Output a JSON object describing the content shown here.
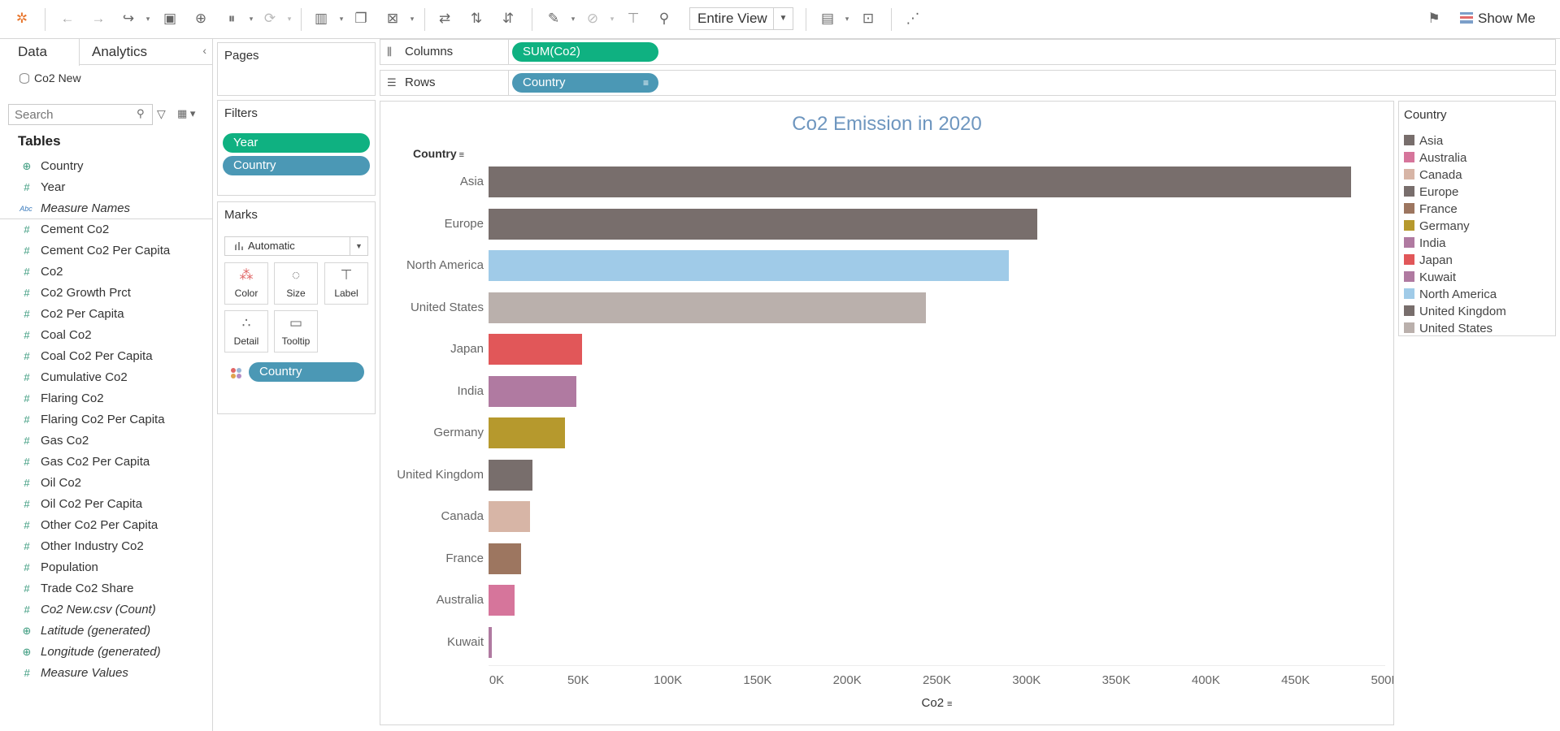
{
  "toolbar": {
    "view_mode": "Entire View",
    "show_me": "Show Me"
  },
  "leftpane": {
    "tabs": [
      "Data",
      "Analytics"
    ],
    "datasource": "Co2 New",
    "search_placeholder": "Search",
    "tables_heading": "Tables",
    "fields": [
      {
        "label": "Country",
        "icon": "globe-icon",
        "italic": false
      },
      {
        "label": "Year",
        "icon": "hash-icon",
        "italic": false
      },
      {
        "label": "Measure Names",
        "icon": "abc-icon",
        "italic": true
      },
      {
        "label": "Cement Co2",
        "icon": "hash-icon",
        "italic": false
      },
      {
        "label": "Cement Co2 Per Capita",
        "icon": "hash-icon",
        "italic": false
      },
      {
        "label": "Co2",
        "icon": "hash-icon",
        "italic": false
      },
      {
        "label": "Co2 Growth Prct",
        "icon": "hash-icon",
        "italic": false
      },
      {
        "label": "Co2 Per Capita",
        "icon": "hash-icon",
        "italic": false
      },
      {
        "label": "Coal Co2",
        "icon": "hash-icon",
        "italic": false
      },
      {
        "label": "Coal Co2 Per Capita",
        "icon": "hash-icon",
        "italic": false
      },
      {
        "label": "Cumulative Co2",
        "icon": "hash-icon",
        "italic": false
      },
      {
        "label": "Flaring Co2",
        "icon": "hash-icon",
        "italic": false
      },
      {
        "label": "Flaring Co2 Per Capita",
        "icon": "hash-icon",
        "italic": false
      },
      {
        "label": "Gas Co2",
        "icon": "hash-icon",
        "italic": false
      },
      {
        "label": "Gas Co2 Per Capita",
        "icon": "hash-icon",
        "italic": false
      },
      {
        "label": "Oil Co2",
        "icon": "hash-icon",
        "italic": false
      },
      {
        "label": "Oil Co2 Per Capita",
        "icon": "hash-icon",
        "italic": false
      },
      {
        "label": "Other Co2 Per Capita",
        "icon": "hash-icon",
        "italic": false
      },
      {
        "label": "Other Industry Co2",
        "icon": "hash-icon",
        "italic": false
      },
      {
        "label": "Population",
        "icon": "hash-icon",
        "italic": false
      },
      {
        "label": "Trade Co2 Share",
        "icon": "hash-icon",
        "italic": false
      },
      {
        "label": "Co2 New.csv (Count)",
        "icon": "hash-icon",
        "italic": true
      },
      {
        "label": "Latitude (generated)",
        "icon": "globe-icon",
        "italic": true
      },
      {
        "label": "Longitude (generated)",
        "icon": "globe-icon",
        "italic": true
      },
      {
        "label": "Measure Values",
        "icon": "hash-icon",
        "italic": true
      }
    ]
  },
  "cards": {
    "pages": "Pages",
    "filters": "Filters",
    "filter_pills": [
      "Year",
      "Country"
    ],
    "marks": "Marks",
    "mark_type": "Automatic",
    "mark_buttons": [
      "Color",
      "Size",
      "Label",
      "Detail",
      "Tooltip"
    ],
    "color_pill": "Country"
  },
  "shelves": {
    "columns_label": "Columns",
    "columns_pill": "SUM(Co2)",
    "rows_label": "Rows",
    "rows_pill": "Country"
  },
  "legend": {
    "title": "Country",
    "items": [
      {
        "label": "Asia",
        "color": "#786e6c"
      },
      {
        "label": "Australia",
        "color": "#d6759b"
      },
      {
        "label": "Canada",
        "color": "#d7b5a6"
      },
      {
        "label": "Europe",
        "color": "#786e6c"
      },
      {
        "label": "France",
        "color": "#9d7660"
      },
      {
        "label": "Germany",
        "color": "#b6992d"
      },
      {
        "label": "India",
        "color": "#b07aa1"
      },
      {
        "label": "Japan",
        "color": "#e15759"
      },
      {
        "label": "Kuwait",
        "color": "#b07aa1"
      },
      {
        "label": "North America",
        "color": "#a0cbe8"
      },
      {
        "label": "United Kingdom",
        "color": "#786e6c"
      },
      {
        "label": "United States",
        "color": "#bab0ac"
      }
    ]
  },
  "chart_data": {
    "type": "bar",
    "orientation": "horizontal",
    "title": "Co2 Emission in 2020",
    "ylabel": "Country",
    "xlabel": "Co2",
    "xlim": [
      0,
      500000
    ],
    "x_ticks": [
      "0K",
      "50K",
      "100K",
      "150K",
      "200K",
      "250K",
      "300K",
      "350K",
      "400K",
      "450K",
      "500K"
    ],
    "categories": [
      "Asia",
      "Europe",
      "North America",
      "United States",
      "Japan",
      "India",
      "Germany",
      "United Kingdom",
      "Canada",
      "France",
      "Australia",
      "Kuwait"
    ],
    "values": [
      481000,
      306000,
      290000,
      244000,
      52000,
      49000,
      42500,
      24500,
      23000,
      18000,
      14500,
      2000
    ],
    "colors": [
      "#786e6c",
      "#786e6c",
      "#a0cbe8",
      "#bab0ac",
      "#e15759",
      "#b07aa1",
      "#b6992d",
      "#786e6c",
      "#d7b5a6",
      "#9d7660",
      "#d6759b",
      "#b07aa1"
    ]
  }
}
